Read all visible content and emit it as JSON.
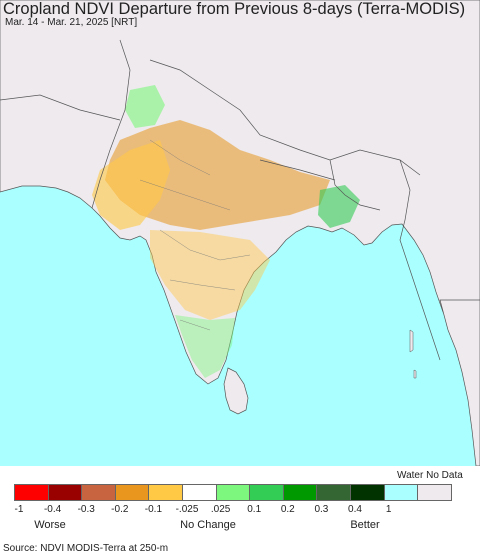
{
  "title": "Cropland NDVI Departure from Previous 8-days (Terra-MODIS)",
  "subtitle": "Mar. 14 - Mar. 21, 2025 [NRT]",
  "legend": {
    "colors": [
      "#ff0000",
      "#990000",
      "#c86540",
      "#e8961d",
      "#ffc845",
      "#ffffff",
      "#7df77d",
      "#33cc55",
      "#009900",
      "#336633",
      "#003300",
      "#aaffff",
      "#eeeaee"
    ],
    "ticks": [
      "-1",
      "-0.4",
      "-0.3",
      "-0.2",
      "-0.1",
      "-.025",
      ".025",
      "0.1",
      "0.2",
      "0.3",
      "0.4",
      "1"
    ],
    "water_label": "Water",
    "nodata_label": "No Data",
    "worse_label": "Worse",
    "nochange_label": "No Change",
    "better_label": "Better"
  },
  "source": "Source: NDVI MODIS-Terra at 250-m",
  "map_colors": {
    "ocean": "#aaffff",
    "land": "#eeeaee",
    "border": "#555555"
  }
}
